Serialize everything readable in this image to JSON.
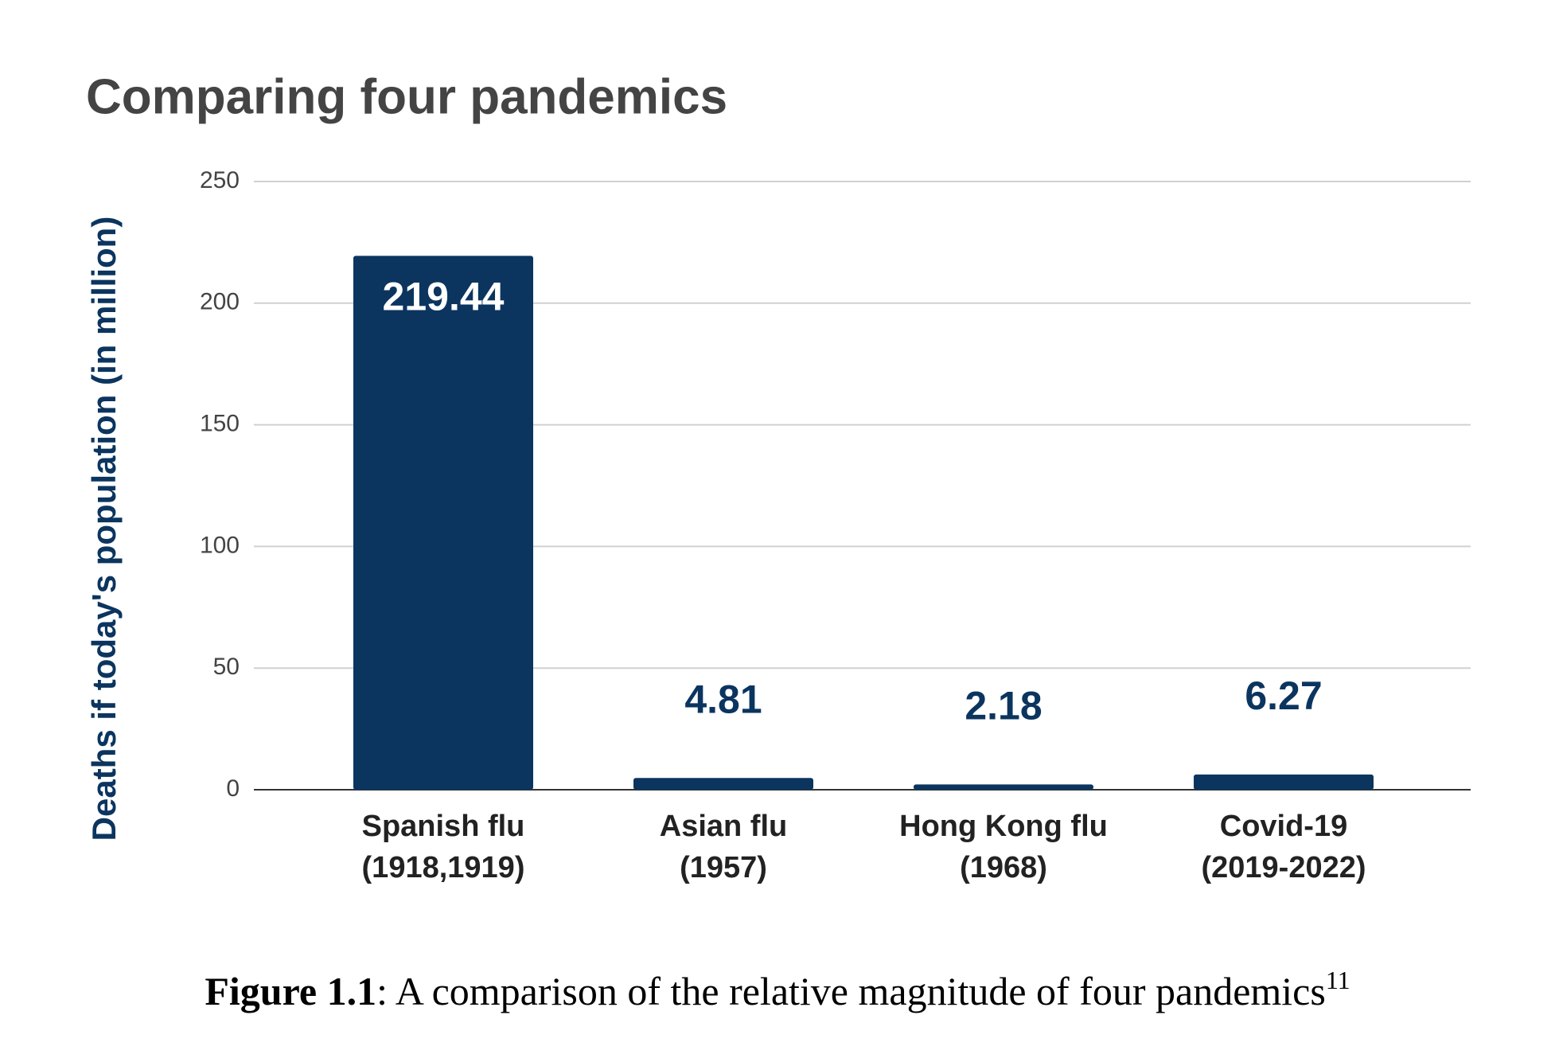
{
  "chart_data": {
    "type": "bar",
    "title": "Comparing four pandemics",
    "y_label": "Deaths if today's population (in million)",
    "categories": [
      [
        "Spanish flu",
        "(1918,1919)"
      ],
      [
        "Asian flu",
        "(1957)"
      ],
      [
        "Hong Kong flu",
        "(1968)"
      ],
      [
        "Covid-19",
        "(2019-2022)"
      ]
    ],
    "values": [
      219.44,
      4.81,
      2.18,
      6.27
    ],
    "color": "#0b355f",
    "ylim": [
      0,
      250
    ],
    "yticks": [
      0,
      50,
      100,
      150,
      200,
      250
    ],
    "grid": true
  },
  "caption": {
    "label": "Figure 1.1",
    "text": ": A comparison of the relative magnitude of four pandemics",
    "footnote": "11"
  }
}
